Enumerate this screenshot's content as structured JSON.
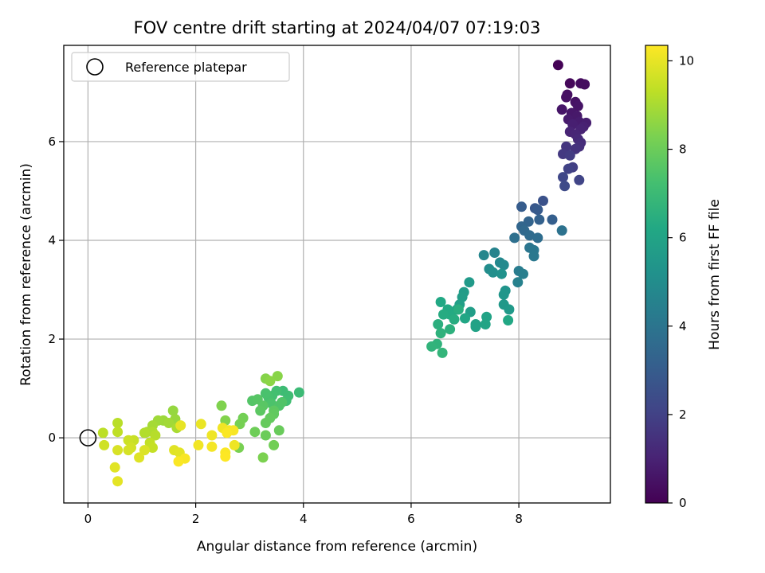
{
  "chart_data": {
    "type": "scatter",
    "title": "FOV centre drift starting at 2024/04/07 07:19:03",
    "xlabel": "Angular distance from reference (arcmin)",
    "ylabel": "Rotation from reference (arcmin)",
    "xlim": [
      -0.45,
      9.7
    ],
    "ylim": [
      -1.32,
      7.95
    ],
    "xticks": [
      0,
      2,
      4,
      6,
      8
    ],
    "yticks": [
      0,
      2,
      4,
      6
    ],
    "grid": true,
    "legend": {
      "placement": "top-left",
      "entries": [
        "Reference platepar"
      ]
    },
    "reference_point": {
      "name": "Reference platepar",
      "x": 0,
      "y": 0
    },
    "colorbar": {
      "label": "Hours from first FF file",
      "cmap": "viridis",
      "range": [
        0,
        10.35
      ],
      "ticks": [
        0,
        2,
        4,
        6,
        8,
        10
      ]
    },
    "columns": [
      "x",
      "y",
      "hours"
    ],
    "points": [
      [
        8.73,
        7.55,
        0.05
      ],
      [
        8.95,
        7.18,
        0.2
      ],
      [
        9.15,
        7.18,
        0.3
      ],
      [
        9.22,
        7.16,
        0.35
      ],
      [
        8.9,
        6.95,
        0.4
      ],
      [
        8.88,
        6.9,
        0.45
      ],
      [
        9.05,
        6.8,
        0.5
      ],
      [
        9.1,
        6.72,
        0.55
      ],
      [
        8.8,
        6.65,
        0.6
      ],
      [
        8.98,
        6.58,
        0.65
      ],
      [
        9.08,
        6.52,
        0.7
      ],
      [
        8.92,
        6.45,
        0.75
      ],
      [
        9.12,
        6.4,
        0.8
      ],
      [
        9.25,
        6.38,
        0.85
      ],
      [
        9.0,
        6.35,
        0.9
      ],
      [
        9.2,
        6.3,
        0.95
      ],
      [
        9.15,
        6.25,
        1.0
      ],
      [
        8.95,
        6.2,
        1.05
      ],
      [
        9.05,
        6.15,
        1.1
      ],
      [
        9.1,
        6.05,
        1.2
      ],
      [
        9.15,
        5.98,
        1.3
      ],
      [
        9.12,
        5.9,
        1.4
      ],
      [
        9.05,
        5.85,
        1.5
      ],
      [
        8.88,
        5.9,
        1.6
      ],
      [
        8.82,
        5.75,
        1.7
      ],
      [
        8.95,
        5.72,
        1.8
      ],
      [
        9.0,
        5.48,
        1.9
      ],
      [
        8.92,
        5.45,
        2.0
      ],
      [
        9.12,
        5.22,
        2.1
      ],
      [
        8.82,
        5.28,
        2.2
      ],
      [
        8.85,
        5.1,
        2.3
      ],
      [
        8.45,
        4.8,
        2.6
      ],
      [
        8.3,
        4.65,
        2.8
      ],
      [
        8.35,
        4.62,
        2.9
      ],
      [
        8.05,
        4.68,
        3.0
      ],
      [
        8.62,
        4.42,
        3.1
      ],
      [
        8.38,
        4.42,
        3.2
      ],
      [
        8.18,
        4.38,
        3.3
      ],
      [
        8.05,
        4.28,
        3.4
      ],
      [
        8.1,
        4.2,
        3.5
      ],
      [
        8.2,
        4.1,
        3.6
      ],
      [
        8.35,
        4.05,
        3.7
      ],
      [
        7.92,
        4.05,
        3.8
      ],
      [
        8.8,
        4.2,
        3.9
      ],
      [
        8.2,
        3.85,
        4.0
      ],
      [
        8.28,
        3.8,
        4.1
      ],
      [
        8.28,
        3.68,
        4.15
      ],
      [
        8.0,
        3.38,
        4.3
      ],
      [
        8.08,
        3.32,
        4.4
      ],
      [
        7.98,
        3.15,
        4.5
      ],
      [
        7.55,
        3.75,
        4.6
      ],
      [
        7.35,
        3.7,
        4.7
      ],
      [
        7.65,
        3.55,
        4.8
      ],
      [
        7.72,
        3.5,
        4.9
      ],
      [
        7.45,
        3.42,
        5.0
      ],
      [
        7.52,
        3.35,
        5.1
      ],
      [
        7.68,
        3.32,
        5.2
      ],
      [
        7.75,
        2.98,
        5.3
      ],
      [
        7.72,
        2.9,
        5.4
      ],
      [
        7.72,
        2.7,
        5.5
      ],
      [
        7.82,
        2.6,
        5.55
      ],
      [
        7.08,
        3.15,
        5.6
      ],
      [
        6.98,
        2.95,
        5.65
      ],
      [
        6.95,
        2.85,
        5.7
      ],
      [
        7.1,
        2.55,
        5.75
      ],
      [
        6.9,
        2.7,
        5.8
      ],
      [
        6.85,
        2.6,
        5.85
      ],
      [
        7.2,
        2.3,
        5.9
      ],
      [
        7.2,
        2.25,
        5.95
      ],
      [
        7.4,
        2.45,
        6.0
      ],
      [
        7.38,
        2.3,
        6.05
      ],
      [
        7.0,
        2.42,
        6.1
      ],
      [
        7.8,
        2.38,
        6.15
      ],
      [
        6.55,
        2.75,
        6.2
      ],
      [
        6.68,
        2.6,
        6.25
      ],
      [
        6.72,
        2.5,
        6.3
      ],
      [
        6.6,
        2.5,
        6.35
      ],
      [
        6.8,
        2.4,
        6.4
      ],
      [
        6.88,
        2.6,
        6.45
      ],
      [
        6.5,
        2.3,
        6.5
      ],
      [
        6.72,
        2.2,
        6.55
      ],
      [
        6.55,
        2.12,
        6.6
      ],
      [
        6.48,
        1.9,
        6.65
      ],
      [
        6.38,
        1.85,
        6.7
      ],
      [
        6.58,
        1.72,
        6.75
      ],
      [
        3.92,
        0.92,
        7.0
      ],
      [
        3.62,
        0.95,
        7.05
      ],
      [
        3.72,
        0.85,
        7.1
      ],
      [
        3.68,
        0.75,
        7.15
      ],
      [
        3.5,
        0.95,
        7.2
      ],
      [
        3.42,
        0.85,
        7.25
      ],
      [
        3.35,
        0.82,
        7.3
      ],
      [
        3.3,
        0.9,
        7.35
      ],
      [
        3.4,
        0.7,
        7.4
      ],
      [
        3.55,
        0.65,
        7.45
      ],
      [
        3.6,
        0.72,
        7.5
      ],
      [
        3.05,
        0.75,
        7.55
      ],
      [
        3.15,
        0.78,
        7.6
      ],
      [
        3.25,
        0.65,
        7.65
      ],
      [
        3.2,
        0.55,
        7.7
      ],
      [
        3.45,
        0.55,
        7.75
      ],
      [
        3.45,
        0.48,
        7.8
      ],
      [
        3.38,
        0.4,
        7.85
      ],
      [
        3.3,
        0.3,
        7.9
      ],
      [
        3.55,
        0.15,
        7.95
      ],
      [
        3.3,
        0.05,
        8.0
      ],
      [
        3.1,
        0.12,
        8.05
      ],
      [
        3.45,
        -0.15,
        8.1
      ],
      [
        2.88,
        0.4,
        8.15
      ],
      [
        2.82,
        0.28,
        8.2
      ],
      [
        2.8,
        -0.2,
        8.25
      ],
      [
        3.25,
        -0.4,
        8.3
      ],
      [
        2.48,
        0.65,
        8.35
      ],
      [
        2.55,
        0.35,
        8.4
      ],
      [
        3.3,
        1.2,
        8.45
      ],
      [
        3.52,
        1.25,
        8.5
      ],
      [
        3.38,
        1.15,
        8.55
      ],
      [
        1.58,
        0.55,
        8.7
      ],
      [
        1.62,
        0.38,
        8.75
      ],
      [
        1.4,
        0.35,
        8.8
      ],
      [
        1.3,
        0.35,
        8.85
      ],
      [
        1.5,
        0.3,
        8.9
      ],
      [
        1.2,
        0.25,
        8.95
      ],
      [
        1.65,
        0.2,
        9.0
      ],
      [
        1.1,
        0.12,
        9.05
      ],
      [
        1.2,
        0.12,
        9.1
      ],
      [
        1.05,
        0.1,
        9.15
      ],
      [
        1.25,
        0.05,
        9.2
      ],
      [
        0.55,
        0.3,
        9.25
      ],
      [
        0.28,
        0.1,
        9.3
      ],
      [
        0.55,
        0.12,
        9.35
      ],
      [
        1.15,
        -0.1,
        9.4
      ],
      [
        1.2,
        -0.2,
        9.45
      ],
      [
        0.85,
        -0.05,
        9.5
      ],
      [
        0.75,
        -0.05,
        9.55
      ],
      [
        0.3,
        -0.15,
        9.6
      ],
      [
        0.8,
        -0.2,
        9.65
      ],
      [
        0.75,
        -0.25,
        9.7
      ],
      [
        0.55,
        -0.25,
        9.75
      ],
      [
        1.05,
        -0.25,
        9.8
      ],
      [
        0.95,
        -0.4,
        9.85
      ],
      [
        0.5,
        -0.6,
        9.9
      ],
      [
        0.55,
        -0.88,
        9.95
      ],
      [
        1.6,
        -0.25,
        9.88
      ],
      [
        1.7,
        -0.3,
        9.92
      ],
      [
        1.72,
        0.25,
        10.0
      ],
      [
        2.1,
        0.28,
        10.05
      ],
      [
        2.3,
        0.05,
        10.1
      ],
      [
        2.5,
        0.2,
        10.15
      ],
      [
        2.62,
        0.15,
        10.2
      ],
      [
        2.7,
        0.15,
        10.25
      ],
      [
        2.58,
        0.1,
        10.3
      ],
      [
        2.72,
        -0.15,
        10.1
      ],
      [
        2.05,
        -0.15,
        10.15
      ],
      [
        2.3,
        -0.18,
        10.2
      ],
      [
        1.8,
        -0.42,
        10.25
      ],
      [
        1.68,
        -0.48,
        10.3
      ],
      [
        2.55,
        -0.3,
        10.3
      ],
      [
        2.55,
        -0.38,
        10.35
      ]
    ]
  }
}
